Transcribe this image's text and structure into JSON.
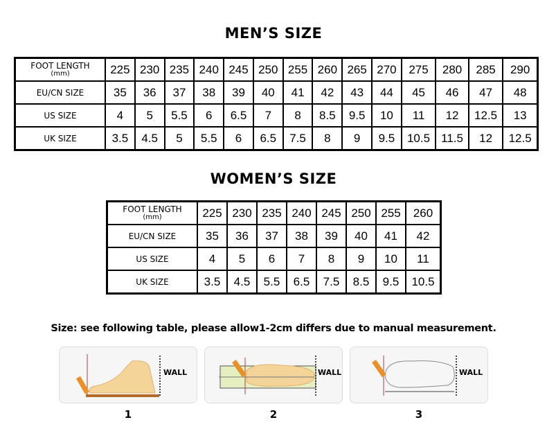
{
  "mens": {
    "title": "MEN’S SIZE",
    "header_label": "FOOT LENGTH",
    "header_unit": "(mm)",
    "rows": [
      {
        "label": "FOOT LENGTH",
        "values": [
          "225",
          "230",
          "235",
          "240",
          "245",
          "250",
          "255",
          "260",
          "265",
          "270",
          "275",
          "280",
          "285",
          "290"
        ]
      },
      {
        "label": "EU/CN SIZE",
        "values": [
          "35",
          "36",
          "37",
          "38",
          "39",
          "40",
          "41",
          "42",
          "43",
          "44",
          "45",
          "46",
          "47",
          "48"
        ]
      },
      {
        "label": "US SIZE",
        "values": [
          "4",
          "5",
          "5.5",
          "6",
          "6.5",
          "7",
          "8",
          "8.5",
          "9.5",
          "10",
          "11",
          "12",
          "12.5",
          "13"
        ]
      },
      {
        "label": "UK SIZE",
        "values": [
          "3.5",
          "4.5",
          "5",
          "5.5",
          "6",
          "6.5",
          "7.5",
          "8",
          "9",
          "9.5",
          "10.5",
          "11.5",
          "12",
          "12.5"
        ]
      }
    ]
  },
  "womens": {
    "title": "WOMEN’S SIZE",
    "header_label": "FOOT LENGTH",
    "header_unit": "(mm)",
    "rows": [
      {
        "label": "FOOT LENGTH",
        "values": [
          "225",
          "230",
          "235",
          "240",
          "245",
          "250",
          "255",
          "260"
        ]
      },
      {
        "label": "EU/CN SIZE",
        "values": [
          "35",
          "36",
          "37",
          "38",
          "39",
          "40",
          "41",
          "42"
        ]
      },
      {
        "label": "US SIZE",
        "values": [
          "4",
          "5",
          "6",
          "7",
          "8",
          "9",
          "10",
          "11"
        ]
      },
      {
        "label": "UK SIZE",
        "values": [
          "3.5",
          "4.5",
          "5.5",
          "6.5",
          "7.5",
          "8.5",
          "9.5",
          "10.5"
        ]
      }
    ]
  },
  "note": "Size: see following table, please allow1-2cm differs due to manual measurement.",
  "steps": [
    {
      "number": "1",
      "wall": "WALL"
    },
    {
      "number": "2",
      "wall": "WALL"
    },
    {
      "number": "3",
      "wall": "WALL"
    }
  ],
  "colors": {
    "foot": "#f5d49a",
    "pencil": "#e8912a",
    "line": "#b04040"
  }
}
